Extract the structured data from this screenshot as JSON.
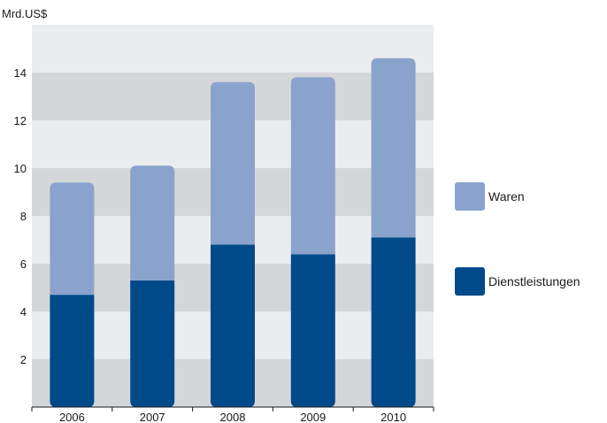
{
  "chart_data": {
    "type": "bar",
    "stacked": true,
    "categories": [
      "2006",
      "2007",
      "2008",
      "2009",
      "2010"
    ],
    "series": [
      {
        "name": "Dienstleistungen",
        "values": [
          4.7,
          5.3,
          6.8,
          6.4,
          7.1
        ],
        "color": "#004a8a"
      },
      {
        "name": "Waren",
        "values": [
          4.7,
          4.8,
          6.8,
          7.4,
          7.5
        ],
        "color": "#8aa3cc"
      }
    ],
    "ylabel": "Mrd.US$",
    "ylim": [
      0,
      16
    ],
    "yticks": [
      "2",
      "4",
      "6",
      "8",
      "10",
      "12",
      "14"
    ],
    "grid": "alternating horizontal bands",
    "band_colors": [
      "#d4d6da",
      "#ebecee"
    ],
    "legend": "right",
    "legend_order": [
      "Waren",
      "Dienstleistungen"
    ]
  }
}
